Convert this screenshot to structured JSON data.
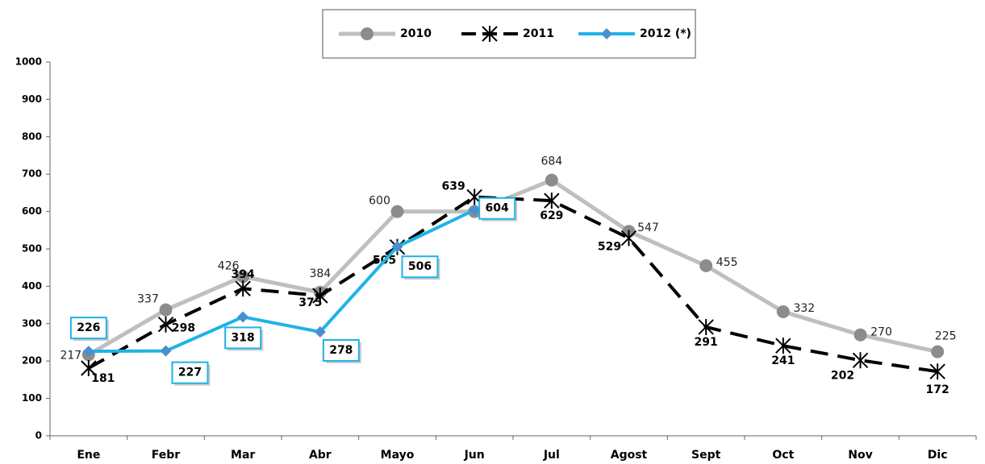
{
  "chart_data": {
    "type": "line",
    "categories": [
      "Ene",
      "Febr",
      "Mar",
      "Abr",
      "Mayo",
      "Jun",
      "Jul",
      "Agost",
      "Sept",
      "Oct",
      "Nov",
      "Dic"
    ],
    "series": [
      {
        "name": "2010",
        "color": "#bfbfbf",
        "values": [
          217,
          337,
          426,
          384,
          600,
          600,
          684,
          547,
          455,
          332,
          270,
          225
        ]
      },
      {
        "name": "2011",
        "color": "#000000",
        "values": [
          181,
          298,
          394,
          375,
          505,
          639,
          629,
          529,
          291,
          241,
          202,
          172
        ]
      },
      {
        "name": "2012 (*)",
        "color": "#1fb2e8",
        "values": [
          226,
          227,
          318,
          278,
          506,
          604,
          null,
          null,
          null,
          null,
          null,
          null
        ]
      }
    ],
    "ylim": [
      0,
      1000
    ],
    "yticks": [
      0,
      100,
      200,
      300,
      400,
      500,
      600,
      700,
      800,
      900,
      1000
    ],
    "grid": false,
    "legend": "top"
  }
}
